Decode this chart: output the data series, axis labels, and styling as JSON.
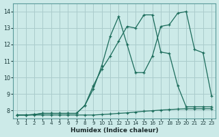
{
  "bg_color": "#cceae8",
  "grid_color": "#aacccc",
  "line_color": "#1a6b5a",
  "xlabel": "Humidex (Indice chaleur)",
  "xlim": [
    -0.5,
    23.5
  ],
  "ylim": [
    7.5,
    14.5
  ],
  "xticks": [
    0,
    1,
    2,
    3,
    4,
    5,
    6,
    7,
    8,
    9,
    10,
    11,
    12,
    13,
    14,
    15,
    16,
    17,
    18,
    19,
    20,
    21,
    22,
    23
  ],
  "yticks": [
    8,
    9,
    10,
    11,
    12,
    13,
    14
  ],
  "line1_x": [
    0,
    1,
    2,
    3,
    4,
    5,
    6,
    7,
    8,
    9,
    10,
    11,
    12,
    13,
    14,
    15,
    16,
    17,
    18,
    19,
    20,
    21,
    22,
    23
  ],
  "line1_y": [
    7.72,
    7.72,
    7.72,
    7.72,
    7.72,
    7.72,
    7.72,
    7.72,
    7.72,
    7.72,
    7.75,
    7.78,
    7.82,
    7.85,
    7.9,
    7.95,
    7.98,
    8.02,
    8.05,
    8.08,
    8.1,
    8.1,
    8.1,
    8.1
  ],
  "line2_x": [
    0,
    1,
    2,
    3,
    4,
    5,
    6,
    7,
    8,
    9,
    10,
    11,
    12,
    13,
    14,
    15,
    16,
    17,
    18,
    19,
    20,
    21,
    22,
    23
  ],
  "line2_y": [
    7.72,
    7.72,
    7.75,
    7.82,
    7.82,
    7.82,
    7.82,
    7.82,
    8.3,
    9.5,
    10.5,
    11.3,
    12.2,
    13.1,
    13.0,
    13.8,
    13.8,
    11.55,
    11.45,
    9.5,
    8.22,
    8.22,
    8.22,
    8.22
  ],
  "line3_x": [
    0,
    1,
    2,
    3,
    4,
    5,
    6,
    7,
    8,
    9,
    10,
    11,
    12,
    13,
    14,
    15,
    16,
    17,
    18,
    19,
    20,
    21,
    22,
    23
  ],
  "line3_y": [
    7.72,
    7.72,
    7.75,
    7.82,
    7.82,
    7.82,
    7.82,
    7.82,
    8.3,
    9.3,
    10.7,
    12.5,
    13.7,
    12.0,
    10.3,
    10.3,
    11.3,
    13.1,
    13.2,
    13.9,
    14.0,
    11.7,
    11.5,
    8.9
  ]
}
